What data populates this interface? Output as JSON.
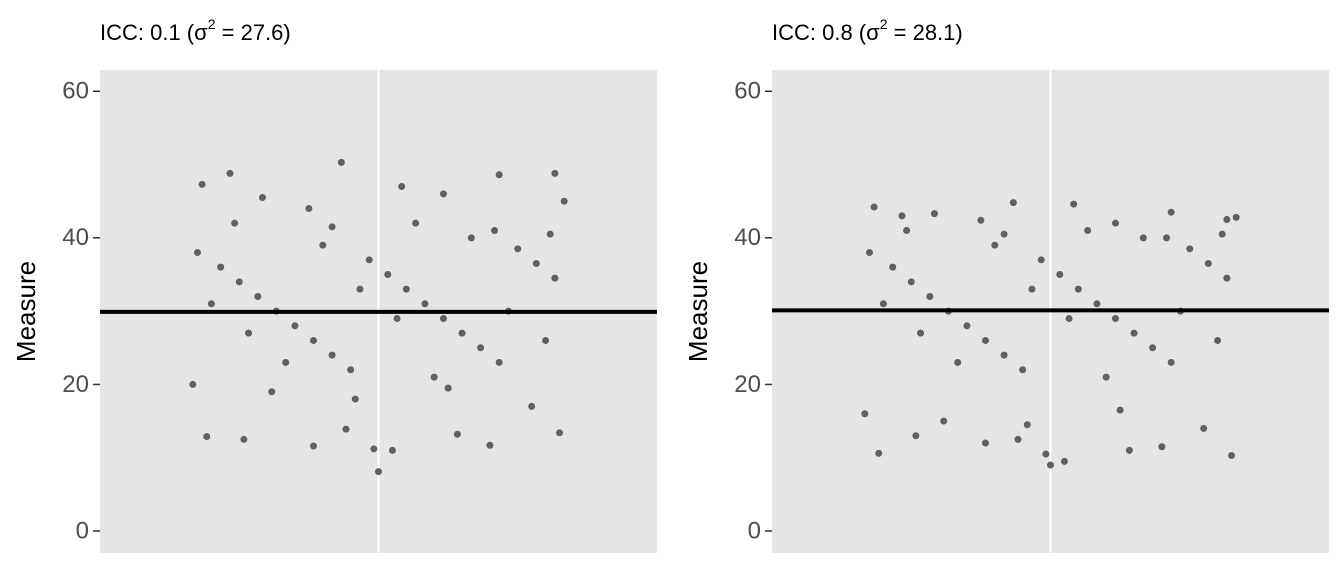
{
  "chart_data": [
    {
      "type": "scatter",
      "title_prefix": "ICC: 0.1 (σ",
      "title_sup": "2",
      "title_suffix": " = 27.6)",
      "y_label": "Measure",
      "xlim": [
        0.4,
        1.6
      ],
      "xticks": [
        1
      ],
      "ylim": [
        -3,
        62.9
      ],
      "yticks": [
        0,
        20,
        40,
        60
      ],
      "grid": true,
      "color": "#606060",
      "hline": 29.9,
      "x": [
        0.62,
        0.68,
        0.92,
        1.05,
        1.26,
        1.38,
        1.4,
        0.75,
        1.14,
        0.85,
        1.0,
        0.99,
        1.03,
        0.86,
        1.24,
        0.63,
        0.71,
        1.39,
        0.93,
        1.17,
        0.61,
        0.66,
        0.7,
        0.74,
        0.78,
        0.82,
        0.86,
        0.9,
        0.94,
        0.98,
        1.02,
        1.06,
        1.1,
        1.14,
        1.18,
        1.22,
        1.26,
        1.3,
        1.34,
        1.38,
        0.64,
        0.72,
        0.8,
        0.88,
        0.96,
        1.04,
        1.12,
        1.2,
        1.28,
        1.36,
        0.6,
        0.77,
        0.95,
        1.15,
        1.33,
        0.69,
        0.9,
        1.08,
        1.25,
        1.37
      ],
      "y": [
        47.3,
        48.8,
        50.3,
        47.0,
        48.6,
        48.8,
        45.0,
        45.5,
        46.0,
        44.0,
        8.1,
        11.2,
        11.0,
        11.6,
        11.7,
        12.9,
        12.5,
        13.4,
        13.9,
        13.2,
        38,
        36,
        34,
        32,
        30,
        28,
        26,
        24,
        22,
        37,
        35,
        33,
        31,
        29,
        27,
        25,
        23,
        38.5,
        36.5,
        34.5,
        31,
        27,
        23,
        39,
        33,
        29,
        21,
        40,
        30,
        26,
        20,
        19,
        18,
        19.5,
        17,
        42,
        41.5,
        42,
        41,
        40.5
      ]
    },
    {
      "type": "scatter",
      "title_prefix": "ICC: 0.8 (σ",
      "title_sup": "2",
      "title_suffix": " = 28.1)",
      "y_label": "Measure",
      "xlim": [
        0.4,
        1.6
      ],
      "xticks": [
        1
      ],
      "ylim": [
        -3,
        62.9
      ],
      "yticks": [
        0,
        20,
        40,
        60
      ],
      "grid": true,
      "color": "#606060",
      "hline": 30.1,
      "x": [
        0.62,
        0.68,
        0.92,
        1.05,
        1.26,
        1.38,
        1.4,
        0.75,
        1.14,
        0.85,
        1.0,
        0.99,
        1.03,
        0.86,
        1.24,
        0.63,
        0.71,
        1.39,
        0.93,
        1.17,
        0.61,
        0.66,
        0.7,
        0.74,
        0.78,
        0.82,
        0.86,
        0.9,
        0.94,
        0.98,
        1.02,
        1.06,
        1.1,
        1.14,
        1.18,
        1.22,
        1.26,
        1.3,
        1.34,
        1.38,
        0.64,
        0.72,
        0.8,
        0.88,
        0.96,
        1.04,
        1.12,
        1.2,
        1.28,
        1.36,
        0.6,
        0.77,
        0.95,
        1.15,
        1.33,
        0.69,
        0.9,
        1.08,
        1.25,
        1.37
      ],
      "y": [
        44.2,
        43.0,
        44.8,
        44.6,
        43.5,
        42.5,
        42.8,
        43.3,
        42.0,
        42.4,
        9.0,
        10.5,
        9.5,
        12.0,
        11.5,
        10.6,
        13.0,
        10.3,
        12.5,
        11.0,
        38,
        36,
        34,
        32,
        30,
        28,
        26,
        24,
        22,
        37,
        35,
        33,
        31,
        29,
        27,
        25,
        23,
        38.5,
        36.5,
        34.5,
        31,
        27,
        23,
        39,
        33,
        29,
        21,
        40,
        30,
        26,
        16,
        15,
        14.5,
        16.5,
        14,
        41,
        40.5,
        41,
        40,
        40.5
      ]
    }
  ]
}
